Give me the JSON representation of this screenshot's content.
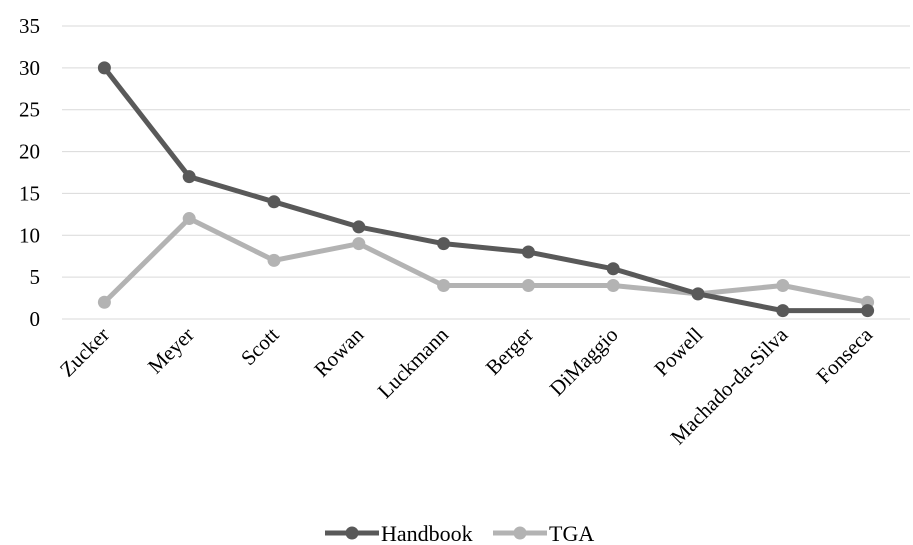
{
  "chart_data": {
    "type": "line",
    "categories": [
      "Zucker",
      "Meyer",
      "Scott",
      "Rowan",
      "Luckmann",
      "Berger",
      "DiMaggio",
      "Powell",
      "Machado-da-Silva",
      "Fonseca"
    ],
    "series": [
      {
        "name": "Handbook",
        "color": "#595959",
        "values": [
          30,
          17,
          14,
          11,
          9,
          8,
          6,
          3,
          1,
          1
        ]
      },
      {
        "name": "TGA",
        "color": "#b3b3b3",
        "values": [
          2,
          12,
          7,
          9,
          4,
          4,
          4,
          3,
          4,
          2
        ]
      }
    ],
    "ylim": [
      0,
      35
    ],
    "yticks": [
      0,
      5,
      10,
      15,
      20,
      25,
      30,
      35
    ],
    "grid": true,
    "legend": "bottom-center",
    "title": "",
    "xlabel": "",
    "ylabel": ""
  }
}
